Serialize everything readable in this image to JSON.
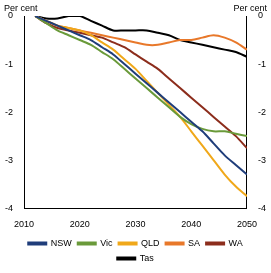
{
  "chart_data": {
    "type": "line",
    "y_label": "Per cent",
    "y2_label": "Per cent",
    "x": [
      2012,
      2014,
      2016,
      2018,
      2020,
      2022,
      2024,
      2026,
      2028,
      2030,
      2032,
      2034,
      2036,
      2038,
      2040,
      2042,
      2044,
      2046,
      2048,
      2050
    ],
    "series": [
      {
        "name": "NSW",
        "color": "#1f3d7a",
        "values": [
          0,
          -0.1,
          -0.2,
          -0.3,
          -0.4,
          -0.5,
          -0.65,
          -0.8,
          -1.0,
          -1.2,
          -1.4,
          -1.6,
          -1.8,
          -2.0,
          -2.2,
          -2.4,
          -2.65,
          -2.9,
          -3.1,
          -3.3
        ]
      },
      {
        "name": "Vic",
        "color": "#6a9a3a",
        "values": [
          0,
          -0.15,
          -0.3,
          -0.4,
          -0.5,
          -0.6,
          -0.75,
          -0.9,
          -1.1,
          -1.3,
          -1.5,
          -1.7,
          -1.9,
          -2.1,
          -2.25,
          -2.35,
          -2.4,
          -2.4,
          -2.45,
          -2.5
        ]
      },
      {
        "name": "QLD",
        "color": "#f0a81a",
        "values": [
          0,
          -0.1,
          -0.2,
          -0.25,
          -0.3,
          -0.4,
          -0.55,
          -0.7,
          -0.9,
          -1.1,
          -1.35,
          -1.6,
          -1.85,
          -2.1,
          -2.4,
          -2.7,
          -3.0,
          -3.3,
          -3.55,
          -3.75
        ]
      },
      {
        "name": "SA",
        "color": "#e8782a",
        "values": [
          0,
          -0.1,
          -0.2,
          -0.25,
          -0.3,
          -0.35,
          -0.4,
          -0.45,
          -0.5,
          -0.55,
          -0.6,
          -0.6,
          -0.55,
          -0.5,
          -0.5,
          -0.45,
          -0.4,
          -0.45,
          -0.55,
          -0.7
        ]
      },
      {
        "name": "WA",
        "color": "#8c2d1c",
        "values": [
          0,
          -0.15,
          -0.25,
          -0.3,
          -0.35,
          -0.4,
          -0.45,
          -0.55,
          -0.65,
          -0.8,
          -0.95,
          -1.1,
          -1.3,
          -1.5,
          -1.7,
          -1.9,
          -2.1,
          -2.3,
          -2.5,
          -2.75
        ]
      },
      {
        "name": "Tas",
        "color": "#000000",
        "values": [
          0,
          -0.05,
          -0.05,
          0,
          0,
          -0.1,
          -0.2,
          -0.3,
          -0.3,
          -0.3,
          -0.3,
          -0.35,
          -0.4,
          -0.5,
          -0.55,
          -0.6,
          -0.65,
          -0.7,
          -0.75,
          -0.85
        ]
      }
    ],
    "xlim": [
      2010,
      2050
    ],
    "xticks": [
      2010,
      2020,
      2030,
      2040,
      2050
    ],
    "ylim": [
      -4,
      0
    ],
    "yticks": [
      -4,
      -3,
      -2,
      -1,
      0
    ],
    "y2lim": [
      -4,
      0
    ],
    "y2ticks": [
      -4,
      -3,
      -2,
      -1,
      0
    ],
    "grid": false,
    "legend": "bottom"
  }
}
